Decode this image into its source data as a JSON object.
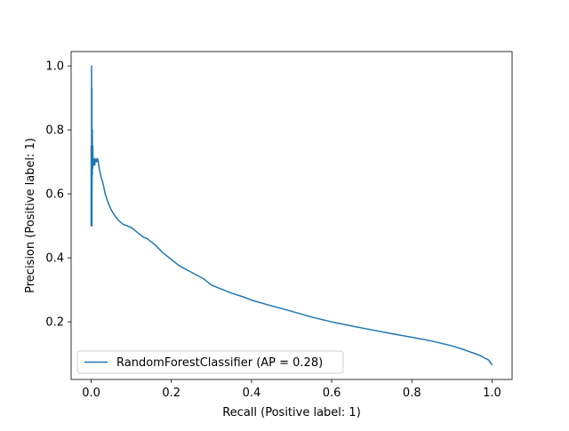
{
  "chart_data": {
    "type": "line",
    "title": "",
    "xlabel": "Recall (Positive label: 1)",
    "ylabel": "Precision (Positive label: 1)",
    "xlim": [
      -0.05,
      1.05
    ],
    "ylim": [
      0.02,
      1.045
    ],
    "x_ticks": [
      0.0,
      0.2,
      0.4,
      0.6,
      0.8,
      1.0
    ],
    "x_tick_labels": [
      "0.0",
      "0.2",
      "0.4",
      "0.6",
      "0.8",
      "1.0"
    ],
    "y_ticks": [
      0.2,
      0.4,
      0.6,
      0.8,
      1.0
    ],
    "y_tick_labels": [
      "0.2",
      "0.4",
      "0.6",
      "0.8",
      "1.0"
    ],
    "grid": false,
    "legend_position": "lower-left",
    "series_color": "#1f77b4",
    "series": [
      {
        "name": "RandomForestClassifier (AP = 0.28)",
        "x": [
          0.0,
          0.0,
          0.001,
          0.001,
          0.002,
          0.002,
          0.002,
          0.003,
          0.003,
          0.003,
          0.004,
          0.004,
          0.005,
          0.006,
          0.007,
          0.008,
          0.009,
          0.01,
          0.012,
          0.014,
          0.016,
          0.018,
          0.02,
          0.022,
          0.025,
          0.028,
          0.03,
          0.035,
          0.04,
          0.05,
          0.06,
          0.07,
          0.08,
          0.09,
          0.1,
          0.11,
          0.12,
          0.13,
          0.14,
          0.15,
          0.16,
          0.18,
          0.2,
          0.22,
          0.25,
          0.28,
          0.3,
          0.32,
          0.35,
          0.38,
          0.4,
          0.45,
          0.5,
          0.55,
          0.6,
          0.65,
          0.7,
          0.75,
          0.8,
          0.85,
          0.9,
          0.93,
          0.95,
          0.97,
          0.98,
          0.99,
          0.995,
          1.0
        ],
        "y": [
          0.5,
          0.75,
          0.5,
          1.0,
          0.5,
          0.93,
          0.6,
          0.8,
          0.66,
          0.74,
          0.68,
          0.75,
          0.69,
          0.7,
          0.69,
          0.71,
          0.69,
          0.7,
          0.71,
          0.7,
          0.71,
          0.7,
          0.68,
          0.67,
          0.65,
          0.64,
          0.63,
          0.6,
          0.58,
          0.55,
          0.53,
          0.515,
          0.505,
          0.5,
          0.495,
          0.485,
          0.475,
          0.465,
          0.46,
          0.45,
          0.44,
          0.415,
          0.395,
          0.375,
          0.355,
          0.335,
          0.315,
          0.305,
          0.29,
          0.278,
          0.268,
          0.25,
          0.233,
          0.215,
          0.2,
          0.187,
          0.175,
          0.163,
          0.152,
          0.14,
          0.125,
          0.113,
          0.104,
          0.095,
          0.088,
          0.082,
          0.075,
          0.065
        ]
      }
    ]
  }
}
